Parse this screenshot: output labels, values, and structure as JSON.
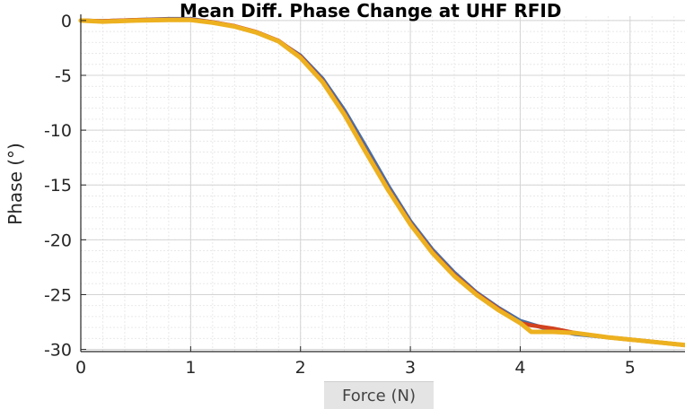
{
  "chart_data": {
    "type": "line",
    "title": "Mean Diff. Phase Change at UHF RFID",
    "xlabel": "Force (N)",
    "ylabel": "Phase (°)",
    "xlim": [
      0,
      5.5
    ],
    "ylim": [
      -30.2,
      0.4
    ],
    "xticks": [
      0,
      1,
      2,
      3,
      4,
      5
    ],
    "yticks": [
      0,
      -5,
      -10,
      -15,
      -20,
      -25,
      -30
    ],
    "grid": "major and minor",
    "series": [
      {
        "color": "#4a6fa5",
        "x": [
          0,
          0.2,
          0.5,
          0.8,
          1.0,
          1.2,
          1.4,
          1.6,
          1.8,
          2.0,
          2.2,
          2.4,
          2.6,
          2.8,
          3.0,
          3.2,
          3.4,
          3.6,
          3.8,
          4.0,
          4.2,
          4.5,
          4.8,
          5.1,
          5.5
        ],
        "y": [
          0,
          -0.05,
          0.05,
          0.15,
          0.15,
          -0.15,
          -0.55,
          -1.1,
          -1.9,
          -3.2,
          -5.3,
          -8.2,
          -11.6,
          -15.1,
          -18.3,
          -20.9,
          -23.0,
          -24.8,
          -26.2,
          -27.4,
          -28.0,
          -28.6,
          -28.9,
          -29.2,
          -29.6
        ]
      },
      {
        "color": "#d2421f",
        "x": [
          0,
          0.2,
          0.5,
          0.8,
          1.0,
          1.2,
          1.4,
          1.6,
          1.8,
          2.0,
          2.2,
          2.4,
          2.6,
          2.8,
          3.0,
          3.2,
          3.4,
          3.6,
          3.8,
          4.0,
          4.1,
          4.3,
          4.5,
          4.8,
          5.1,
          5.5
        ],
        "y": [
          0,
          -0.05,
          0.05,
          0.1,
          0.1,
          -0.15,
          -0.5,
          -1.05,
          -1.85,
          -3.3,
          -5.5,
          -8.5,
          -12.0,
          -15.4,
          -18.5,
          -21.1,
          -23.2,
          -24.9,
          -26.3,
          -27.6,
          -27.8,
          -28.1,
          -28.5,
          -28.9,
          -29.2,
          -29.6
        ]
      },
      {
        "color": "#edb120",
        "x": [
          0,
          0.2,
          0.5,
          0.8,
          1.0,
          1.2,
          1.4,
          1.6,
          1.8,
          2.0,
          2.2,
          2.4,
          2.6,
          2.8,
          3.0,
          3.2,
          3.4,
          3.6,
          3.8,
          4.0,
          4.1,
          4.3,
          4.5,
          4.8,
          5.1,
          5.5
        ],
        "y": [
          0,
          -0.1,
          0.0,
          0.05,
          0.05,
          -0.2,
          -0.55,
          -1.1,
          -1.9,
          -3.4,
          -5.6,
          -8.6,
          -12.1,
          -15.5,
          -18.6,
          -21.2,
          -23.3,
          -25.0,
          -26.4,
          -27.6,
          -28.4,
          -28.4,
          -28.5,
          -28.9,
          -29.2,
          -29.6
        ]
      }
    ]
  }
}
